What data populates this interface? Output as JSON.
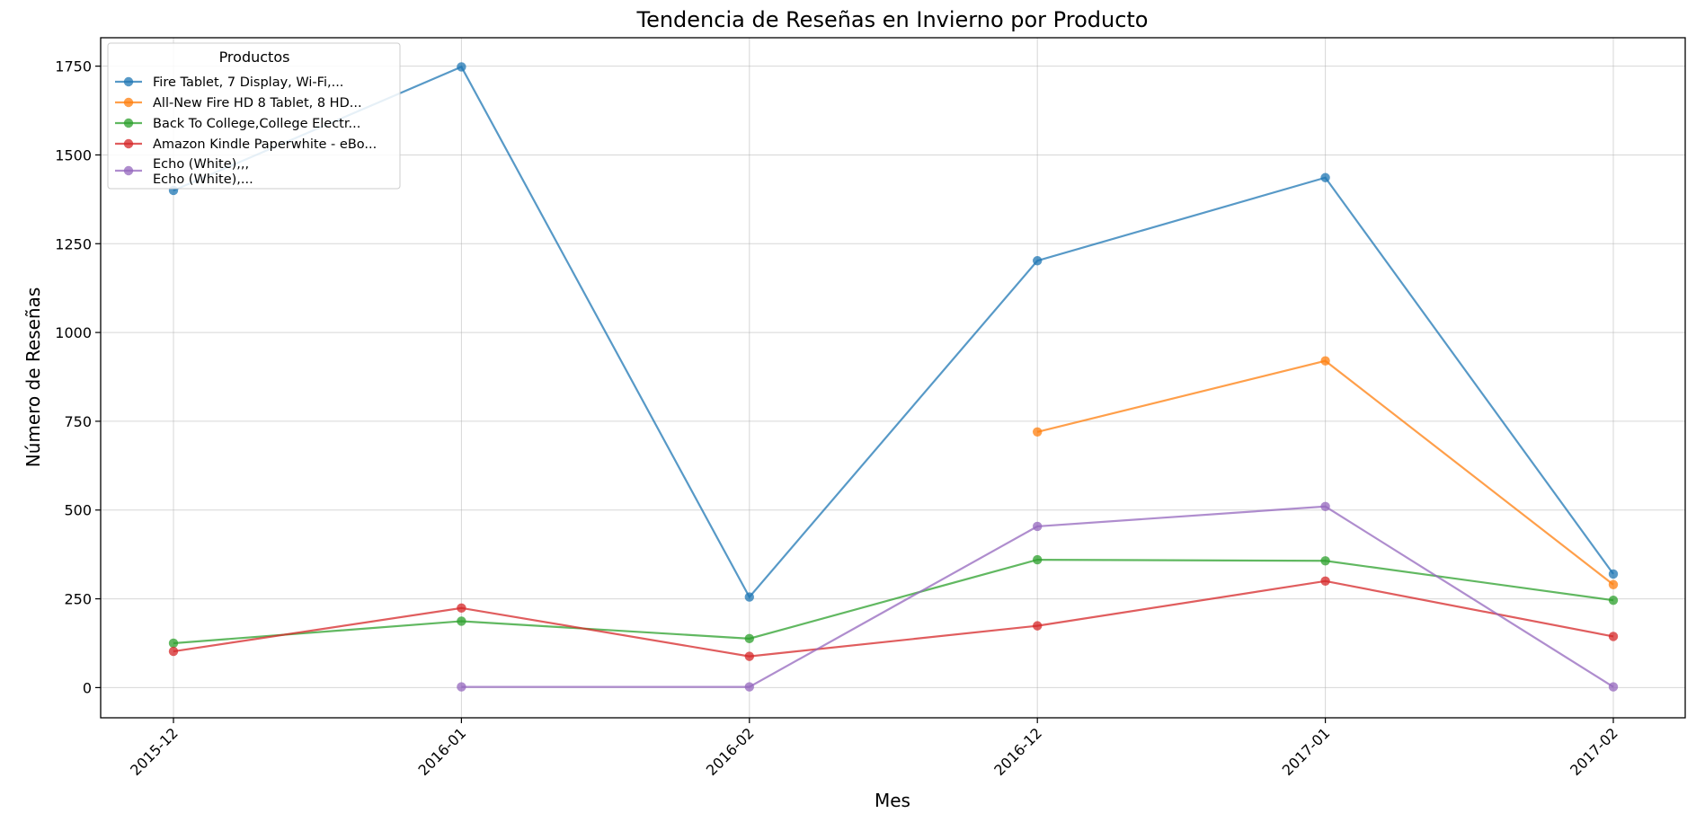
{
  "chart_data": {
    "type": "line",
    "title": "Tendencia de Reseñas en Invierno por Producto",
    "xlabel": "Mes",
    "ylabel": "Número de Reseñas",
    "categories": [
      "2015-12",
      "2016-01",
      "2016-02",
      "2016-12",
      "2017-01",
      "2017-02"
    ],
    "ylim": [
      -85,
      1830
    ],
    "yticks": [
      0,
      250,
      500,
      750,
      1000,
      1250,
      1500,
      1750
    ],
    "grid": true,
    "legend_title": "Productos",
    "legend_position": "top-left",
    "series": [
      {
        "name": "Fire Tablet, 7 Display, Wi-Fi,...",
        "color": "#1f77b4",
        "values": [
          1400,
          1748,
          255,
          1202,
          1436,
          320
        ]
      },
      {
        "name": "All-New Fire HD 8 Tablet, 8 HD...",
        "color": "#ff7f0e",
        "values": [
          null,
          null,
          null,
          720,
          920,
          290
        ]
      },
      {
        "name": "Back To College,College Electr...",
        "color": "#2ca02c",
        "values": [
          125,
          187,
          138,
          360,
          357,
          246
        ]
      },
      {
        "name": "Amazon Kindle Paperwhite - eBo...",
        "color": "#d62728",
        "values": [
          102,
          224,
          88,
          174,
          300,
          144
        ]
      },
      {
        "name": "Echo (White),,,\nEcho (White),...",
        "color": "#9467bd",
        "values": [
          null,
          2,
          2,
          454,
          510,
          2
        ]
      }
    ]
  }
}
